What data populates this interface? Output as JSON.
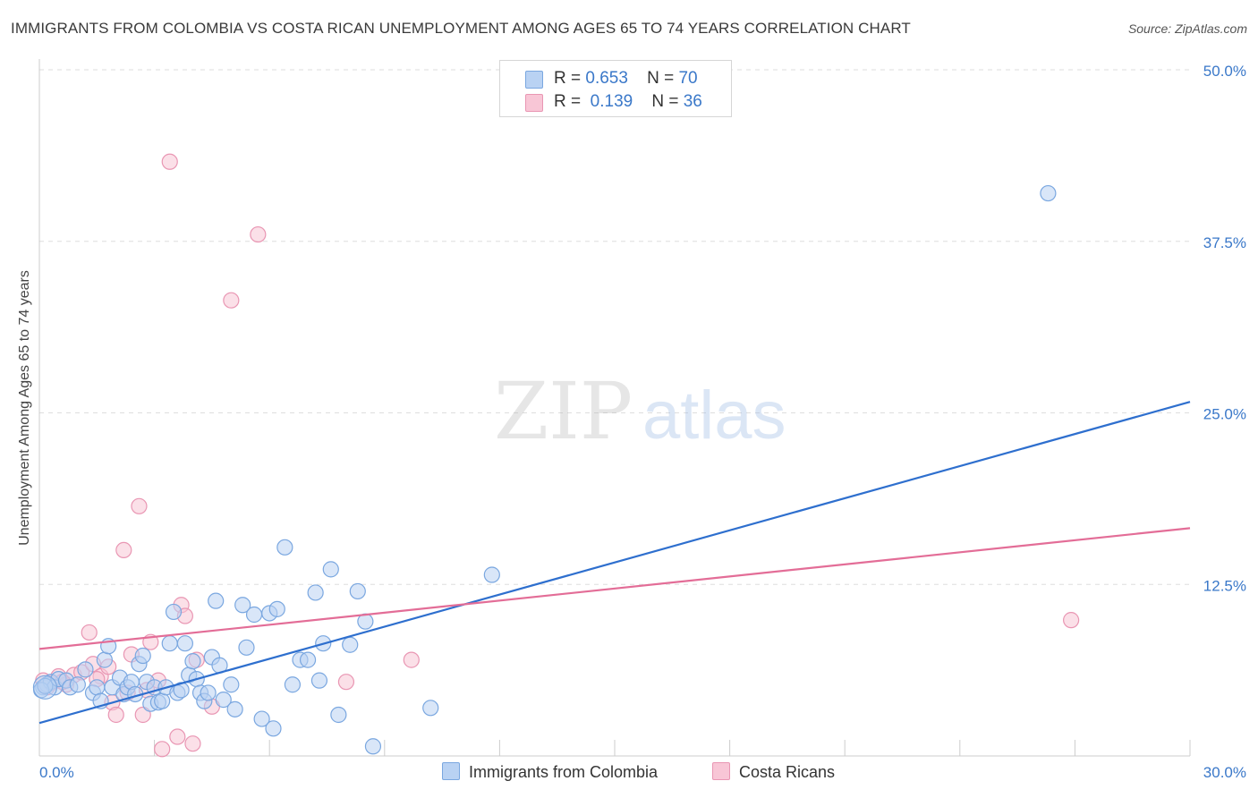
{
  "title": "IMMIGRANTS FROM COLOMBIA VS COSTA RICAN UNEMPLOYMENT AMONG AGES 65 TO 74 YEARS CORRELATION CHART",
  "source": "Source: ZipAtlas.com",
  "watermark": {
    "zip": "ZIP",
    "atlas": "atlas"
  },
  "colors": {
    "blue_fill": "#b9d2f3",
    "blue_stroke": "#7aa7e0",
    "blue_line": "#2e6fce",
    "pink_fill": "#f8c6d6",
    "pink_stroke": "#e996b3",
    "pink_line": "#e36d97",
    "axis_text": "#3a78c9",
    "grid": "#dddddd"
  },
  "legend": {
    "rows": [
      {
        "r_label": "R =",
        "r_value": "0.653",
        "n_label": "N =",
        "n_value": "70"
      },
      {
        "r_label": "R =",
        "r_value": "0.139",
        "n_label": "N =",
        "n_value": "36"
      }
    ]
  },
  "bottom_legend": [
    "Immigrants from Colombia",
    "Costa Ricans"
  ],
  "chart_data": {
    "type": "scatter",
    "title": "IMMIGRANTS FROM COLOMBIA VS COSTA RICAN UNEMPLOYMENT AMONG AGES 65 TO 74 YEARS CORRELATION CHART",
    "xlabel": "",
    "ylabel": "Unemployment Among Ages 65 to 74 years",
    "xlim": [
      0,
      30
    ],
    "ylim": [
      0,
      50
    ],
    "x_tick_labels": [
      "0.0%",
      "30.0%"
    ],
    "y_ticks": [
      12.5,
      25.0,
      37.5,
      50.0
    ],
    "y_tick_labels": [
      "12.5%",
      "25.0%",
      "37.5%",
      "50.0%"
    ],
    "grid": true,
    "legend_position": "top-center",
    "series": [
      {
        "name": "Immigrants from Colombia",
        "color": "#b9d2f3",
        "trend": {
          "x": [
            0,
            30
          ],
          "y": [
            2.4,
            25.8
          ]
        },
        "points": [
          [
            0.1,
            5.0
          ],
          [
            0.2,
            5.2
          ],
          [
            0.3,
            5.4
          ],
          [
            0.4,
            5.0
          ],
          [
            0.5,
            5.6
          ],
          [
            0.7,
            5.5
          ],
          [
            0.8,
            5.0
          ],
          [
            1.0,
            5.2
          ],
          [
            1.2,
            6.3
          ],
          [
            1.4,
            4.6
          ],
          [
            1.5,
            5.0
          ],
          [
            1.6,
            4.0
          ],
          [
            1.7,
            7.0
          ],
          [
            1.8,
            8.0
          ],
          [
            1.9,
            5.0
          ],
          [
            2.1,
            5.7
          ],
          [
            2.2,
            4.5
          ],
          [
            2.3,
            5.0
          ],
          [
            2.4,
            5.4
          ],
          [
            2.5,
            4.5
          ],
          [
            2.6,
            6.7
          ],
          [
            2.7,
            7.3
          ],
          [
            2.8,
            5.4
          ],
          [
            2.9,
            3.8
          ],
          [
            3.0,
            5.0
          ],
          [
            3.1,
            3.9
          ],
          [
            3.2,
            4.0
          ],
          [
            3.3,
            5.0
          ],
          [
            3.4,
            8.2
          ],
          [
            3.5,
            10.5
          ],
          [
            3.6,
            4.6
          ],
          [
            3.7,
            4.8
          ],
          [
            3.8,
            8.2
          ],
          [
            3.9,
            5.9
          ],
          [
            4.0,
            6.9
          ],
          [
            4.1,
            5.6
          ],
          [
            4.2,
            4.6
          ],
          [
            4.3,
            4.0
          ],
          [
            4.4,
            4.6
          ],
          [
            4.5,
            7.2
          ],
          [
            4.6,
            11.3
          ],
          [
            4.7,
            6.6
          ],
          [
            4.8,
            4.1
          ],
          [
            5.0,
            5.2
          ],
          [
            5.1,
            3.4
          ],
          [
            5.3,
            11.0
          ],
          [
            5.4,
            7.9
          ],
          [
            5.6,
            10.3
          ],
          [
            5.8,
            2.7
          ],
          [
            6.0,
            10.4
          ],
          [
            6.1,
            2.0
          ],
          [
            6.2,
            10.7
          ],
          [
            6.4,
            15.2
          ],
          [
            6.6,
            5.2
          ],
          [
            6.8,
            7.0
          ],
          [
            7.0,
            7.0
          ],
          [
            7.2,
            11.9
          ],
          [
            7.3,
            5.5
          ],
          [
            7.4,
            8.2
          ],
          [
            7.6,
            13.6
          ],
          [
            7.8,
            3.0
          ],
          [
            8.1,
            8.1
          ],
          [
            8.3,
            12.0
          ],
          [
            8.5,
            9.8
          ],
          [
            8.7,
            0.7
          ],
          [
            10.2,
            3.5
          ],
          [
            11.8,
            13.2
          ],
          [
            0.05,
            4.8
          ],
          [
            0.15,
            5.1
          ],
          [
            26.3,
            41.0
          ]
        ]
      },
      {
        "name": "Costa Ricans",
        "color": "#f8c6d6",
        "trend": {
          "x": [
            0,
            30
          ],
          "y": [
            7.8,
            16.6
          ]
        },
        "points": [
          [
            0.1,
            5.5
          ],
          [
            0.3,
            5.3
          ],
          [
            0.5,
            5.8
          ],
          [
            0.7,
            5.2
          ],
          [
            0.9,
            5.9
          ],
          [
            1.1,
            6.1
          ],
          [
            1.3,
            9.0
          ],
          [
            1.4,
            6.7
          ],
          [
            1.6,
            5.8
          ],
          [
            1.8,
            6.5
          ],
          [
            1.9,
            3.9
          ],
          [
            2.0,
            3.0
          ],
          [
            2.2,
            15.0
          ],
          [
            2.3,
            4.6
          ],
          [
            2.4,
            7.4
          ],
          [
            2.6,
            18.2
          ],
          [
            2.7,
            3.0
          ],
          [
            2.8,
            4.8
          ],
          [
            2.9,
            8.3
          ],
          [
            3.1,
            5.5
          ],
          [
            3.2,
            0.5
          ],
          [
            3.4,
            43.3
          ],
          [
            3.6,
            1.4
          ],
          [
            3.7,
            11.0
          ],
          [
            3.8,
            10.2
          ],
          [
            4.0,
            0.9
          ],
          [
            4.1,
            7.0
          ],
          [
            4.5,
            3.6
          ],
          [
            5.0,
            33.2
          ],
          [
            5.7,
            38.0
          ],
          [
            8.0,
            5.4
          ],
          [
            9.7,
            7.0
          ],
          [
            0.2,
            5.0
          ],
          [
            0.6,
            5.4
          ],
          [
            1.5,
            5.6
          ],
          [
            26.9,
            9.9
          ]
        ]
      }
    ]
  }
}
